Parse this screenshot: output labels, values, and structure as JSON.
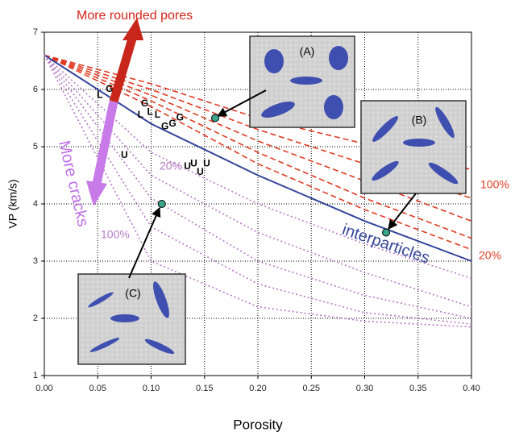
{
  "chart_data": {
    "type": "line",
    "xlabel": "Porosity",
    "ylabel": "VP (km/s)",
    "xlim": [
      0,
      0.4
    ],
    "ylim": [
      1,
      7
    ],
    "xticks": [
      {
        "value": 0,
        "label": "0.00"
      },
      {
        "value": 0.05,
        "label": "0.05"
      },
      {
        "value": 0.1,
        "label": "0.10"
      },
      {
        "value": 0.15,
        "label": "0.15"
      },
      {
        "value": 0.2,
        "label": "0.20"
      },
      {
        "value": 0.25,
        "label": "0.25"
      },
      {
        "value": 0.3,
        "label": "0.30"
      },
      {
        "value": 0.35,
        "label": "0.35"
      },
      {
        "value": 0.4,
        "label": "0.40"
      }
    ],
    "yticks": [
      1,
      2,
      3,
      4,
      5,
      6,
      7
    ],
    "grid": true,
    "x": [
      0,
      0.1,
      0.2,
      0.3,
      0.4
    ],
    "series": [
      {
        "color": "#e03a22",
        "style": "dashed",
        "values": [
          6.6,
          6.1,
          5.5,
          5.05,
          4.6
        ]
      },
      {
        "color": "#e03a22",
        "style": "dashed",
        "values": [
          6.6,
          6.0,
          5.3,
          4.7,
          4.1
        ]
      },
      {
        "color": "#e03a22",
        "style": "dashed",
        "values": [
          6.6,
          5.9,
          5.1,
          4.4,
          3.7
        ]
      },
      {
        "color": "#e03a22",
        "style": "dashed",
        "values": [
          6.6,
          5.8,
          4.9,
          4.1,
          3.4
        ]
      },
      {
        "color": "#e03a22",
        "style": "dashed",
        "values": [
          6.6,
          5.7,
          4.7,
          3.9,
          3.2
        ]
      },
      {
        "color": "#34449a",
        "style": "solid",
        "values": [
          6.6,
          5.4,
          4.5,
          3.7,
          3.0
        ]
      },
      {
        "color": "#b47ac4",
        "style": "dotted",
        "values": [
          6.6,
          4.9,
          4.0,
          3.3,
          2.7
        ]
      },
      {
        "color": "#b47ac4",
        "style": "dotted",
        "values": [
          6.6,
          4.5,
          3.5,
          2.8,
          2.2
        ]
      },
      {
        "color": "#b47ac4",
        "style": "dotted",
        "values": [
          6.6,
          4.1,
          3.0,
          2.4,
          2.0
        ]
      },
      {
        "color": "#b47ac4",
        "style": "dotted",
        "values": [
          6.6,
          3.6,
          2.6,
          2.1,
          1.9
        ]
      },
      {
        "color": "#b47ac4",
        "style": "dotted",
        "values": [
          6.6,
          3.0,
          2.2,
          1.95,
          1.85
        ]
      }
    ],
    "points": {
      "color": "#3aa58a",
      "x": [
        0.16,
        0.32,
        0.11
      ],
      "values": [
        5.5,
        3.5,
        4.0
      ]
    },
    "samples": [
      {
        "label": "L",
        "x": 0.052,
        "y": 5.9
      },
      {
        "label": "G",
        "x": 0.061,
        "y": 6.0
      },
      {
        "label": "L",
        "x": 0.09,
        "y": 5.55
      },
      {
        "label": "G",
        "x": 0.094,
        "y": 5.75
      },
      {
        "label": "L",
        "x": 0.099,
        "y": 5.6
      },
      {
        "label": "L",
        "x": 0.106,
        "y": 5.55
      },
      {
        "label": "G",
        "x": 0.113,
        "y": 5.35
      },
      {
        "label": "G",
        "x": 0.12,
        "y": 5.4
      },
      {
        "label": "G",
        "x": 0.127,
        "y": 5.5
      },
      {
        "label": "U",
        "x": 0.075,
        "y": 4.85
      },
      {
        "label": "U",
        "x": 0.134,
        "y": 4.65
      },
      {
        "label": "U",
        "x": 0.14,
        "y": 4.7
      },
      {
        "label": "U",
        "x": 0.146,
        "y": 4.55
      },
      {
        "label": "U",
        "x": 0.152,
        "y": 4.7
      }
    ],
    "annotations": [
      "More rounded pores",
      "More cracks",
      "interparticles",
      "20%",
      "100%",
      "100%",
      "20%"
    ],
    "insets": [
      "(A)",
      "(B)",
      "(C)"
    ]
  }
}
